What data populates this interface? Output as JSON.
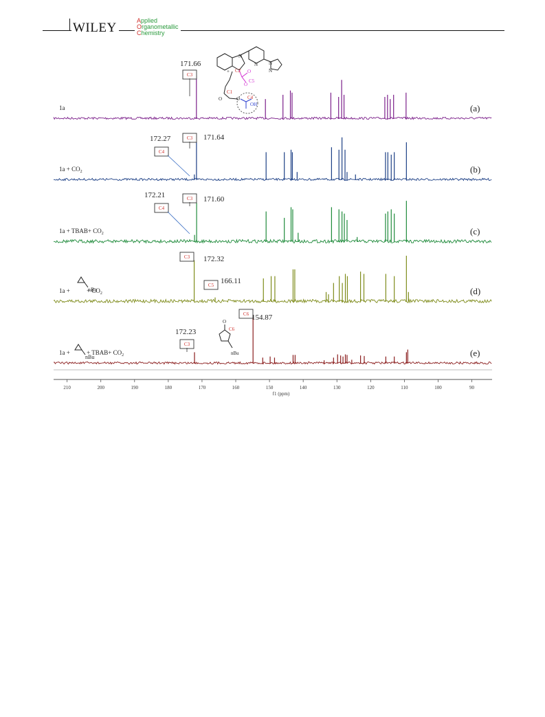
{
  "header": {
    "publisher": "WILEY",
    "journal_lines": [
      {
        "initial": "A",
        "rest": "pplied"
      },
      {
        "initial": "O",
        "rest": "rganometallic"
      },
      {
        "initial": "C",
        "rest": "hemistry"
      }
    ]
  },
  "colors": {
    "a": "#7b1f8a",
    "b": "#1c3f85",
    "c": "#1e8a3a",
    "d": "#7e8b1a",
    "e": "#8a1c1c",
    "label_red": "#d0302b",
    "acid_blue": "#2b3fd0",
    "carboxyl_magenta": "#d02bd0"
  },
  "molecule_labels": {
    "c2": "C2",
    "c1": "C1",
    "c5": "C5",
    "c4": "C4",
    "oh": "OH",
    "o_top": "O",
    "o_ring": "O",
    "c6": "C6",
    "nbu": "nBu",
    "charge": "+",
    "n1": "N",
    "n2": "N",
    "n3": "N",
    "n4": "N",
    "o_c2": "O",
    "o_c5": "O"
  },
  "chart_data": {
    "type": "line",
    "xlabel": "f1 (ppm)",
    "xlim": [
      214,
      84
    ],
    "x_reversed": true,
    "ticks": [
      210,
      200,
      190,
      180,
      170,
      160,
      150,
      140,
      130,
      120,
      110,
      100,
      90
    ],
    "series": [
      {
        "id": "a",
        "panel": "(a)",
        "label_parts": [
          "1a"
        ],
        "sub": "",
        "peaks": [
          [
            171.66,
            1.0
          ],
          [
            151.2,
            0.45
          ],
          [
            146.0,
            0.55
          ],
          [
            143.8,
            0.65
          ],
          [
            143.3,
            0.6
          ],
          [
            131.8,
            0.6
          ],
          [
            129.5,
            0.5
          ],
          [
            128.6,
            0.9
          ],
          [
            127.9,
            0.55
          ],
          [
            115.8,
            0.5
          ],
          [
            115.0,
            0.55
          ],
          [
            114.2,
            0.45
          ],
          [
            113.2,
            0.55
          ],
          [
            109.5,
            0.6
          ]
        ],
        "annotations": [
          {
            "ppm": 171.66,
            "text": "171.66"
          }
        ],
        "boxed": [
          {
            "text": "C3"
          }
        ]
      },
      {
        "id": "b",
        "panel": "(b)",
        "label_parts": [
          "1a + CO"
        ],
        "sub": "2",
        "peaks": [
          [
            172.27,
            0.1
          ],
          [
            171.64,
            0.75
          ],
          [
            151.0,
            0.55
          ],
          [
            145.6,
            0.55
          ],
          [
            143.6,
            0.6
          ],
          [
            143.2,
            0.55
          ],
          [
            141.8,
            0.15
          ],
          [
            131.6,
            0.65
          ],
          [
            129.4,
            0.6
          ],
          [
            128.5,
            0.85
          ],
          [
            127.6,
            0.6
          ],
          [
            127.0,
            0.15
          ],
          [
            124.5,
            0.1
          ],
          [
            115.6,
            0.55
          ],
          [
            114.9,
            0.55
          ],
          [
            113.9,
            0.5
          ],
          [
            113.0,
            0.55
          ],
          [
            109.4,
            0.75
          ]
        ],
        "annotations": [
          {
            "ppm": 172.27,
            "text": "172.27"
          },
          {
            "ppm": 171.64,
            "text": "171.64"
          }
        ],
        "boxed": [
          {
            "text": "C4"
          },
          {
            "text": "C3"
          }
        ]
      },
      {
        "id": "c",
        "panel": "(c)",
        "label_parts": [
          "1a + TBAB+ CO"
        ],
        "sub": "2",
        "peaks": [
          [
            172.21,
            0.15
          ],
          [
            171.6,
            0.9
          ],
          [
            151.0,
            0.7
          ],
          [
            145.6,
            0.55
          ],
          [
            143.6,
            0.8
          ],
          [
            143.1,
            0.75
          ],
          [
            141.5,
            0.2
          ],
          [
            131.6,
            0.8
          ],
          [
            129.4,
            0.75
          ],
          [
            128.5,
            0.7
          ],
          [
            127.8,
            0.65
          ],
          [
            127.0,
            0.5
          ],
          [
            124.0,
            0.1
          ],
          [
            115.6,
            0.65
          ],
          [
            114.9,
            0.7
          ],
          [
            113.9,
            0.75
          ],
          [
            113.0,
            0.65
          ],
          [
            109.4,
            0.95
          ]
        ],
        "annotations": [
          {
            "ppm": 172.21,
            "text": "172.21"
          },
          {
            "ppm": 171.6,
            "text": "171.60"
          }
        ],
        "boxed": [
          {
            "text": "C4"
          },
          {
            "text": "C3"
          }
        ]
      },
      {
        "id": "d",
        "panel": "(d)",
        "label_parts": [
          "1a + ",
          " + CO"
        ],
        "sub": "2",
        "peaks": [
          [
            172.32,
            0.9
          ],
          [
            166.11,
            0.08
          ],
          [
            151.8,
            0.5
          ],
          [
            149.5,
            0.55
          ],
          [
            148.4,
            0.55
          ],
          [
            143.0,
            0.7
          ],
          [
            142.5,
            0.7
          ],
          [
            133.2,
            0.2
          ],
          [
            132.5,
            0.15
          ],
          [
            131.0,
            0.4
          ],
          [
            129.3,
            0.55
          ],
          [
            128.4,
            0.4
          ],
          [
            127.5,
            0.6
          ],
          [
            126.9,
            0.55
          ],
          [
            123.0,
            0.65
          ],
          [
            122.0,
            0.6
          ],
          [
            115.5,
            0.6
          ],
          [
            113.0,
            0.55
          ],
          [
            109.4,
            1.0
          ],
          [
            108.8,
            0.2
          ]
        ],
        "annotations": [
          {
            "ppm": 172.32,
            "text": "172.32"
          },
          {
            "ppm": 166.11,
            "text": "166.11"
          }
        ],
        "boxed": [
          {
            "text": "C3"
          },
          {
            "text": "C5"
          }
        ]
      },
      {
        "id": "e",
        "panel": "(e)",
        "label_parts": [
          "1a + ",
          " + TBAB+ CO"
        ],
        "sub": "2",
        "peaks": [
          [
            172.23,
            0.2
          ],
          [
            154.87,
            0.9
          ],
          [
            152.0,
            0.1
          ],
          [
            149.8,
            0.12
          ],
          [
            148.5,
            0.1
          ],
          [
            143.0,
            0.15
          ],
          [
            142.4,
            0.15
          ],
          [
            133.8,
            0.05
          ],
          [
            131.0,
            0.1
          ],
          [
            129.8,
            0.16
          ],
          [
            128.9,
            0.14
          ],
          [
            128.2,
            0.12
          ],
          [
            127.5,
            0.16
          ],
          [
            127.0,
            0.15
          ],
          [
            125.6,
            0.06
          ],
          [
            123.0,
            0.14
          ],
          [
            121.9,
            0.13
          ],
          [
            115.5,
            0.12
          ],
          [
            113.0,
            0.12
          ],
          [
            109.4,
            0.2
          ],
          [
            109.0,
            0.25
          ]
        ],
        "annotations": [
          {
            "ppm": 172.23,
            "text": "172.23"
          },
          {
            "ppm": 154.87,
            "text": "154.87"
          }
        ],
        "boxed": [
          {
            "text": "C3"
          },
          {
            "text": "C6"
          }
        ]
      }
    ]
  }
}
